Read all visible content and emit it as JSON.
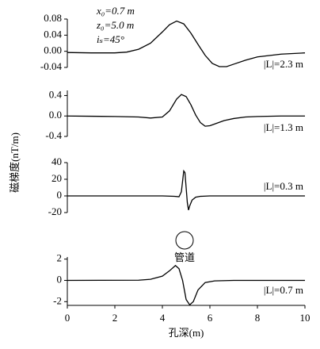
{
  "chart_data": [
    {
      "type": "line",
      "color": "#000000",
      "ylabel": "磁梯度(nT/m)",
      "label": "|L|=2.3 m",
      "annotations": [
        "x₀=0.7 m",
        "z₀=5.0 m",
        "iₛ=45°"
      ],
      "xlim": [
        0,
        10
      ],
      "ylim": [
        -0.04,
        0.08
      ],
      "yticks": [
        0.08,
        0.04,
        {
          "value": 0,
          "label": "0.00"
        },
        -0.04
      ],
      "x": [
        0,
        1,
        2,
        2.5,
        3,
        3.5,
        4,
        4.3,
        4.6,
        4.9,
        5.2,
        5.5,
        5.8,
        6.1,
        6.4,
        6.7,
        7,
        7.5,
        8,
        9,
        10
      ],
      "values": [
        -0.003,
        -0.004,
        -0.004,
        -0.002,
        0.005,
        0.02,
        0.048,
        0.066,
        0.075,
        0.068,
        0.045,
        0.017,
        -0.01,
        -0.03,
        -0.038,
        -0.038,
        -0.032,
        -0.022,
        -0.014,
        -0.007,
        -0.004
      ]
    },
    {
      "type": "line",
      "color": "#000000",
      "label": "|L|=1.3 m",
      "xlim": [
        0,
        10
      ],
      "ylim": [
        -0.4,
        0.5
      ],
      "yticks": [
        0.4,
        {
          "value": 0,
          "label": "0.0"
        },
        -0.4
      ],
      "x": [
        0,
        1,
        2,
        3,
        3.5,
        4,
        4.3,
        4.6,
        4.8,
        5,
        5.2,
        5.4,
        5.6,
        5.8,
        6,
        6.3,
        6.6,
        7,
        7.5,
        8,
        9,
        10
      ],
      "values": [
        0,
        -0.005,
        -0.01,
        -0.02,
        -0.04,
        -0.02,
        0.1,
        0.33,
        0.42,
        0.38,
        0.22,
        0.02,
        -0.13,
        -0.2,
        -0.19,
        -0.14,
        -0.09,
        -0.05,
        -0.02,
        -0.01,
        0,
        0
      ]
    },
    {
      "type": "line",
      "color": "#000000",
      "label": "|L|=0.3 m",
      "xlim": [
        0,
        10
      ],
      "ylim": [
        -20,
        40
      ],
      "yticks": [
        40,
        20,
        0,
        -20
      ],
      "x": [
        0,
        4,
        4.5,
        4.7,
        4.8,
        4.9,
        4.95,
        5,
        5.05,
        5.1,
        5.15,
        5.25,
        5.4,
        5.6,
        6,
        10
      ],
      "values": [
        0,
        0,
        -0.5,
        -1,
        5,
        30,
        28,
        10,
        -8,
        -17,
        -12,
        -5,
        -1.5,
        -0.5,
        0,
        0
      ]
    },
    {
      "type": "line",
      "color": "#000000",
      "label": "|L|=0.7 m",
      "annotations": [
        "管道"
      ],
      "xlabel": "孔深(m)",
      "xlim": [
        0,
        10
      ],
      "ylim": [
        -2.35,
        2.2
      ],
      "yticks": [
        2,
        0,
        -2
      ],
      "xticks": [
        0,
        2,
        4,
        6,
        8,
        10
      ],
      "x": [
        0,
        3,
        3.5,
        4,
        4.3,
        4.55,
        4.7,
        4.85,
        5,
        5.15,
        5.3,
        5.5,
        5.8,
        6.2,
        7,
        10
      ],
      "values": [
        0,
        0.02,
        0.1,
        0.4,
        0.9,
        1.4,
        1.1,
        0,
        -1.8,
        -2.3,
        -2.0,
        -0.9,
        -0.2,
        -0.05,
        0,
        0
      ]
    }
  ]
}
